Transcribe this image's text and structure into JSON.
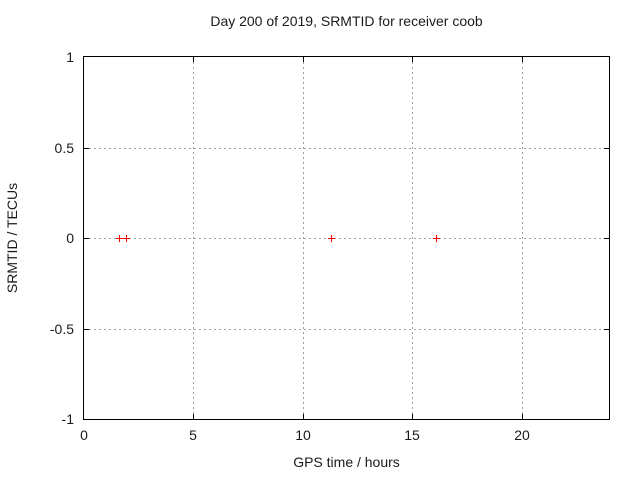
{
  "page": {
    "background": "#ffffff"
  },
  "chart_data": {
    "type": "scatter",
    "title": "Day 200 of 2019, SRMTID for receiver coob",
    "xlabel": "GPS time / hours",
    "ylabel": "SRMTID / TECUs",
    "xlim": [
      0,
      24
    ],
    "ylim": [
      -1,
      1
    ],
    "xticks": [
      0,
      5,
      10,
      15,
      20
    ],
    "xtick_labels": [
      "0",
      "5",
      "10",
      "15",
      "20"
    ],
    "yticks": [
      1,
      0.5,
      0,
      -0.5,
      -1
    ],
    "ytick_labels": [
      "1",
      "0.5",
      "0",
      "-0.5",
      "-1"
    ],
    "grid": true,
    "grid_style": "dotted",
    "legend_position": "none",
    "colors": {
      "marker": "#ff0000",
      "grid": "#a0a0a0",
      "border": "#000000",
      "text": "#1a1a1a",
      "background": "#ffffff"
    },
    "series": [
      {
        "name": "SRMTID",
        "marker": "plus",
        "color": "#ff0000",
        "x": [
          1.6,
          1.9,
          11.3,
          16.1
        ],
        "y": [
          0,
          0,
          0,
          0
        ]
      }
    ]
  }
}
